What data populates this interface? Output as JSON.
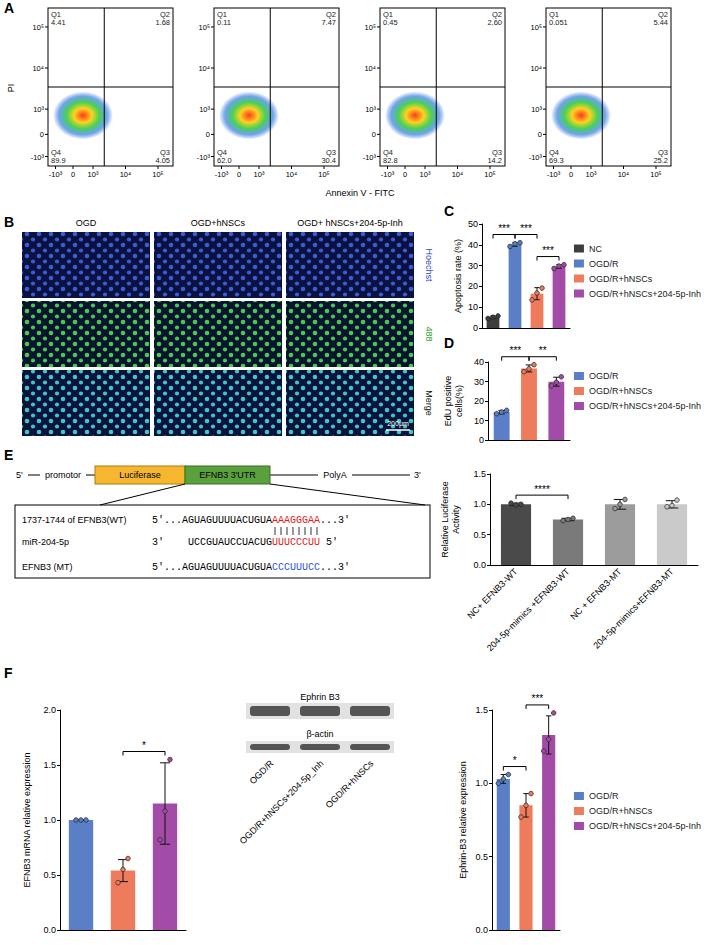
{
  "chart_data": [
    {
      "panel": "C",
      "type": "bar",
      "ylabel": "Apoptosis rate (%)",
      "categories": [
        "NC",
        "OGD/R",
        "OGD/R+hNSCs",
        "OGD/R+hNSCs+204-5p-Inh"
      ],
      "values": [
        5.2,
        40.2,
        16.5,
        29.6
      ],
      "errors": [
        0.6,
        0.9,
        2.9,
        0.9
      ],
      "points": [
        [
          4.6,
          5.2,
          5.8
        ],
        [
          39.2,
          40.5,
          41.0
        ],
        [
          13.5,
          16.8,
          19.2
        ],
        [
          28.6,
          29.8,
          30.4
        ]
      ],
      "colors": [
        "#3d3d3d",
        "#5a7fc6",
        "#ee7b5b",
        "#a24ca8"
      ],
      "ylim": [
        0,
        50
      ],
      "yticks": [
        0,
        10,
        20,
        30,
        40,
        50
      ],
      "grid": false,
      "legend": "right",
      "tick_labels": "y",
      "annotations": [
        {
          "from": "NC",
          "to": "OGD/R",
          "text": "***"
        },
        {
          "from": "OGD/R",
          "to": "OGD/R+hNSCs",
          "text": "***"
        },
        {
          "from": "OGD/R+hNSCs",
          "to": "OGD/R+hNSCs+204-5p-Inh",
          "text": "***"
        }
      ]
    },
    {
      "panel": "D",
      "type": "bar",
      "ylabel": "EdU positive cells(%)",
      "categories": [
        "OGD/R",
        "OGD/R+hNSCs",
        "OGD/R+hNSCs+204-5p-Inh"
      ],
      "values": [
        14.3,
        36.7,
        29.9
      ],
      "errors": [
        0.9,
        1.8,
        2.3
      ],
      "points": [
        [
          13.5,
          14.3,
          15.2
        ],
        [
          35.0,
          36.5,
          38.6
        ],
        [
          27.8,
          29.6,
          32.4
        ]
      ],
      "colors": [
        "#5a7fc6",
        "#ee7b5b",
        "#a24ca8"
      ],
      "ylim": [
        0,
        40
      ],
      "yticks": [
        0,
        10,
        20,
        30,
        40
      ],
      "grid": false,
      "legend": "right",
      "tick_labels": "y",
      "annotations": [
        {
          "from": "OGD/R",
          "to": "OGD/R+hNSCs",
          "text": "***"
        },
        {
          "from": "OGD/R+hNSCs",
          "to": "OGD/R+hNSCs+204-5p-Inh",
          "text": "**"
        }
      ]
    },
    {
      "panel": "E",
      "type": "bar",
      "ylabel": "Relative Luciferase Activity",
      "categories": [
        "NC+ EFNB3-WT",
        "204-5p-mimics +EFNB3-WT",
        "NC + EFNB3-MT",
        "204-5p-mimics+EFNB3-MT"
      ],
      "values": [
        1.0,
        0.75,
        1.0,
        1.0
      ],
      "errors": [
        0.02,
        0.02,
        0.08,
        0.06
      ],
      "points": [
        [
          1.02,
          0.99,
          1.0
        ],
        [
          0.73,
          0.75,
          0.77
        ],
        [
          0.93,
          1.0,
          1.08
        ],
        [
          0.96,
          0.98,
          1.07
        ]
      ],
      "colors": [
        "#4a4a4a",
        "#7a7a7a",
        "#9c9c9c",
        "#cacaca"
      ],
      "ylim": [
        0,
        1.5
      ],
      "yticks": [
        {
          "value": 0,
          "label": "0.0"
        },
        0.5,
        {
          "value": 1,
          "label": "1.0"
        },
        1.5
      ],
      "grid": false,
      "tick_labels": true,
      "annotations": [
        {
          "from": "NC+ EFNB3-WT",
          "to": "204-5p-mimics +EFNB3-WT",
          "text": "****"
        }
      ]
    },
    {
      "panel": "F",
      "type": "bar",
      "ylabel": "EFNB3 mRNA relative expression",
      "categories": [
        "OGD/R",
        "OGD/R+hNSCs",
        "OGD/R+hNSCs+204-5p-Inh"
      ],
      "values": [
        1.0,
        0.54,
        1.15
      ],
      "errors": [
        0,
        0.1,
        0.37
      ],
      "points": [
        [
          1.0,
          1.0,
          1.0
        ],
        [
          0.43,
          0.55,
          0.65
        ],
        [
          0.82,
          1.08,
          1.55
        ]
      ],
      "colors": [
        "#5a7fc6",
        "#ee7b5b",
        "#a24ca8"
      ],
      "ylim": [
        0,
        2
      ],
      "yticks": [
        {
          "value": 0,
          "label": "0.0"
        },
        0.5,
        {
          "value": 1,
          "label": "1.0"
        },
        1.5,
        {
          "value": 2,
          "label": "2.0"
        }
      ],
      "grid": false,
      "tick_labels": "y",
      "annotations": [
        {
          "from": "OGD/R+hNSCs",
          "to": "OGD/R+hNSCs+204-5p-Inh",
          "text": "*"
        }
      ]
    },
    {
      "panel": "F",
      "type": "bar",
      "ylabel": "Ephrin-B3 relative expression",
      "categories": [
        "OGD/R",
        "OGD/R+hNSCs",
        "OGD/R+hNSCs+204-5p-Inh"
      ],
      "values": [
        1.03,
        0.85,
        1.33
      ],
      "errors": [
        0.03,
        0.08,
        0.13
      ],
      "points": [
        [
          1.0,
          1.03,
          1.06
        ],
        [
          0.77,
          0.85,
          0.93
        ],
        [
          1.22,
          1.3,
          1.48
        ]
      ],
      "colors": [
        "#5a7fc6",
        "#ee7b5b",
        "#a24ca8"
      ],
      "ylim": [
        0,
        1.5
      ],
      "yticks": [
        {
          "value": 0,
          "label": "0.0"
        },
        0.5,
        {
          "value": 1,
          "label": "1.0"
        },
        1.5
      ],
      "grid": false,
      "legend": "right",
      "tick_labels": "y",
      "annotations": [
        {
          "from": "OGD/R",
          "to": "OGD/R+hNSCs",
          "text": "*"
        },
        {
          "from": "OGD/R+hNSCs",
          "to": "OGD/R+hNSCs+204-5p-Inh",
          "text": "***"
        }
      ]
    }
  ],
  "flow_cytometry": {
    "panel": "A",
    "x_label": "Annexin V - FITC",
    "y_label": "PI",
    "x_ticks": [
      "-10³",
      "0",
      "10³",
      "10⁴",
      "10⁵"
    ],
    "y_ticks": [
      "-10³",
      "0",
      "10³",
      "10⁴",
      "10⁵"
    ],
    "plots": [
      {
        "quadrants": [
          {
            "name": "Q1",
            "value": "4.41"
          },
          {
            "name": "Q2",
            "value": "1.68"
          },
          {
            "name": "Q3",
            "value": "4.05"
          },
          {
            "name": "Q4",
            "value": "89.9"
          }
        ]
      },
      {
        "quadrants": [
          {
            "name": "Q1",
            "value": "0.11"
          },
          {
            "name": "Q2",
            "value": "7.47"
          },
          {
            "name": "Q3",
            "value": "30.4"
          },
          {
            "name": "Q4",
            "value": "62.0"
          }
        ]
      },
      {
        "quadrants": [
          {
            "name": "Q1",
            "value": "0.45"
          },
          {
            "name": "Q2",
            "value": "2.60"
          },
          {
            "name": "Q3",
            "value": "14.2"
          },
          {
            "name": "Q4",
            "value": "82.8"
          }
        ]
      },
      {
        "quadrants": [
          {
            "name": "Q1",
            "value": "0.051"
          },
          {
            "name": "Q2",
            "value": "5.44"
          },
          {
            "name": "Q3",
            "value": "25.2"
          },
          {
            "name": "Q4",
            "value": "69.3"
          }
        ]
      }
    ]
  },
  "microscopy": {
    "panel": "B",
    "columns": [
      "OGD",
      "OGD+hNSCs",
      "OGD+ hNSCs+204-5p-Inh"
    ],
    "rows": [
      "Hoechst",
      "488",
      "Merge"
    ],
    "scale_bar": "200μm"
  },
  "construct": {
    "panel": "E",
    "five_prime": "5'",
    "promoter": "promotor",
    "reporter": "Luciferase",
    "utr": "EFNB3 3'UTR",
    "poly_a": "PolyA",
    "three_prime": "3'",
    "sequences": [
      {
        "label": "1737-1744 of EFNB3(WT)",
        "prefix": "5'...AGUAGUUUUACUGUA",
        "site": "AAAGGGAA",
        "suffix": "...3'",
        "color": "#e02020"
      },
      {
        "label": "miR-204-5p",
        "prefix": "3'",
        "seq": "UCCGUAUCCUACUG",
        "site": "UUUCCCUU",
        "suffix": "5'",
        "color": "#e02020"
      },
      {
        "label": "EFNB3 (MT)",
        "prefix": "5'...AGUAGUUUUACUGUA",
        "site": "CCCUUUCC",
        "suffix": "...3'",
        "color": "#2a5bd7"
      }
    ]
  },
  "western_blot": {
    "panel": "F",
    "bands": [
      "Ephrin B3",
      "β-actin"
    ],
    "lanes": [
      "OGD/R",
      "OGD/R+hNSCs+204-5p_Inh",
      "OGD/R+hNSCs"
    ]
  }
}
